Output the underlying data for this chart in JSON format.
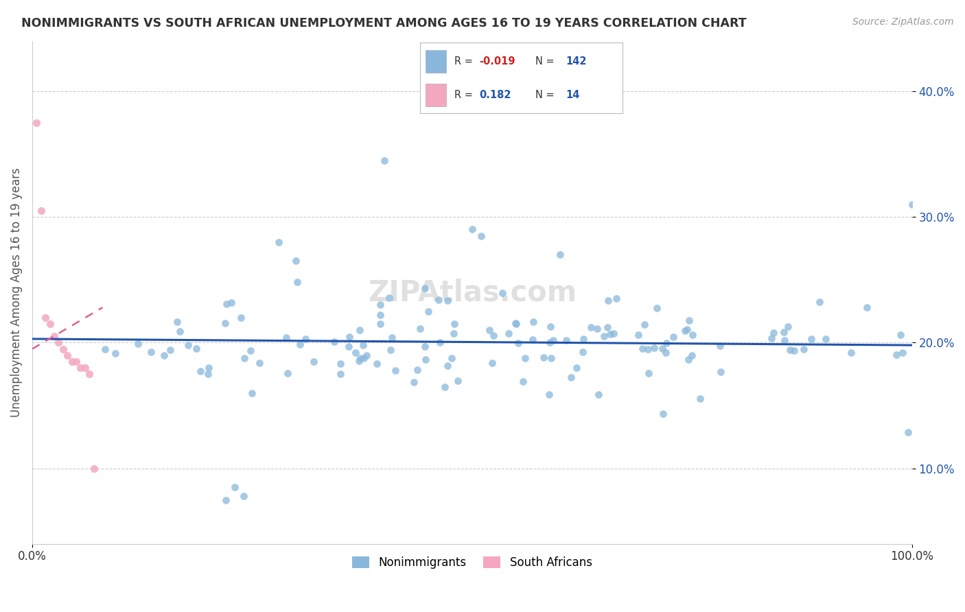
{
  "title": "NONIMMIGRANTS VS SOUTH AFRICAN UNEMPLOYMENT AMONG AGES 16 TO 19 YEARS CORRELATION CHART",
  "source": "Source: ZipAtlas.com",
  "ylabel": "Unemployment Among Ages 16 to 19 years",
  "xlim": [
    0.0,
    1.0
  ],
  "ylim": [
    0.04,
    0.44
  ],
  "yticks": [
    0.1,
    0.2,
    0.3,
    0.4
  ],
  "ytick_labels": [
    "10.0%",
    "20.0%",
    "30.0%",
    "40.0%"
  ],
  "scatter_blue_color": "#89b8dc",
  "scatter_pink_color": "#f4a8c0",
  "blue_line_color": "#2255aa",
  "pink_line_color": "#e06090",
  "blue_R": "-0.019",
  "blue_N": "142",
  "pink_R": "0.182",
  "pink_N": "14",
  "R_label_color": "#333333",
  "R_value_blue_color": "#cc2222",
  "R_value_positive_color": "#2255aa",
  "N_value_color": "#2255aa",
  "grid_color": "#c8c8c8",
  "background_color": "#ffffff",
  "blue_line_x0": 0.0,
  "blue_line_y0": 0.203,
  "blue_line_x1": 1.0,
  "blue_line_y1": 0.198,
  "pink_line_x0": 0.0,
  "pink_line_y0": 0.195,
  "pink_line_x1": 0.08,
  "pink_line_y1": 0.225
}
